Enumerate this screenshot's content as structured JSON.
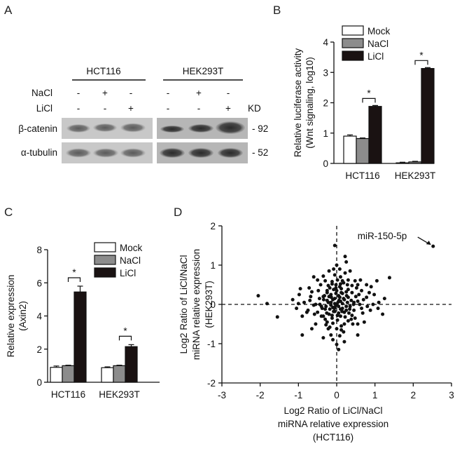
{
  "panels": {
    "A": {
      "letter": "A",
      "cell_lines": [
        "HCT116",
        "HEK293T"
      ],
      "row_labels": {
        "nacl": "NaCl",
        "licl": "LiCl"
      },
      "kd_label": "KD",
      "nacl_signs": [
        "-",
        "+",
        "-",
        "-",
        "+",
        "-"
      ],
      "licl_signs": [
        "-",
        "-",
        "+",
        "-",
        "-",
        "+"
      ],
      "bands": [
        {
          "name": "β-catenin",
          "kd": "- 92"
        },
        {
          "name": "α-tubulin",
          "kd": "- 52"
        }
      ]
    },
    "B": {
      "letter": "B"
    },
    "C": {
      "letter": "C"
    },
    "D": {
      "letter": "D"
    }
  },
  "chart_data": [
    {
      "panel": "B",
      "type": "bar",
      "categories": [
        "HCT116",
        "HEK293T"
      ],
      "series": [
        {
          "name": "Mock",
          "values": [
            0.9,
            0.02
          ],
          "errors": [
            0.04,
            0.02
          ],
          "color": "#ffffff"
        },
        {
          "name": "NaCl",
          "values": [
            0.82,
            0.05
          ],
          "errors": [
            0.02,
            0.02
          ],
          "color": "#8c8c8c"
        },
        {
          "name": "LiCl",
          "values": [
            1.88,
            3.13
          ],
          "errors": [
            0.03,
            0.03
          ],
          "color": "#1a1212"
        }
      ],
      "ylabel": [
        "Relative luciferase activity",
        "(Wnt signaling, log10)"
      ],
      "ylim": [
        0,
        4
      ],
      "yticks": [
        "0",
        "1",
        "2",
        "3",
        "4"
      ],
      "significance": [
        "*",
        "*"
      ]
    },
    {
      "panel": "C",
      "type": "bar",
      "categories": [
        "HCT116",
        "HEK293T"
      ],
      "series": [
        {
          "name": "Mock",
          "values": [
            0.9,
            0.88
          ],
          "errors": [
            0.08,
            0.05
          ],
          "color": "#ffffff"
        },
        {
          "name": "NaCl",
          "values": [
            1.0,
            1.0
          ],
          "errors": [
            0.03,
            0.03
          ],
          "color": "#8c8c8c"
        },
        {
          "name": "LiCl",
          "values": [
            5.45,
            2.15
          ],
          "errors": [
            0.35,
            0.12
          ],
          "color": "#1a1212"
        }
      ],
      "ylabel": [
        "Relative expression",
        "(Axin2)"
      ],
      "ylim": [
        0,
        8
      ],
      "yticks": [
        "0",
        "2",
        "4",
        "6",
        "8"
      ],
      "significance": [
        "*",
        "*"
      ]
    },
    {
      "panel": "D",
      "type": "scatter",
      "xlabel": [
        "Log2 Ratio of LiCl/NaCl",
        "miRNA relative expression",
        "(HCT116)"
      ],
      "ylabel": [
        "Log2 Ratio of LiCl/NaCl",
        "miRNA relative expression",
        "(HEK293T)"
      ],
      "xlim": [
        -3,
        3
      ],
      "ylim": [
        -2,
        2
      ],
      "xticks": [
        "-3",
        "-2",
        "-1",
        "0",
        "1",
        "2",
        "3"
      ],
      "yticks": [
        "-2",
        "-1",
        "0",
        "1",
        "2"
      ],
      "annotation": {
        "text": "miR-150-5p",
        "x": 2.52,
        "y": 1.48
      },
      "points": [
        [
          2.52,
          1.48
        ],
        [
          1.38,
          0.68
        ],
        [
          1.05,
          0.6
        ],
        [
          0.78,
          0.5
        ],
        [
          0.55,
          0.5
        ],
        [
          -0.35,
          0.72
        ],
        [
          -0.6,
          0.7
        ],
        [
          -2.05,
          0.22
        ],
        [
          -1.82,
          0.02
        ],
        [
          -1.55,
          -0.32
        ],
        [
          -0.05,
          1.5
        ],
        [
          0.22,
          1.22
        ],
        [
          0.25,
          1.08
        ],
        [
          0.0,
          1.0
        ],
        [
          0.08,
          0.9
        ],
        [
          -0.22,
          0.48
        ],
        [
          0.4,
          0.48
        ],
        [
          -0.1,
          -0.9
        ],
        [
          0.05,
          -1.15
        ],
        [
          0.0,
          -1.02
        ],
        [
          -0.15,
          -0.78
        ],
        [
          0.12,
          -0.65
        ],
        [
          0.2,
          -0.5
        ],
        [
          -0.55,
          -0.5
        ],
        [
          0.55,
          -0.5
        ],
        [
          -0.25,
          -0.45
        ],
        [
          0.3,
          -0.42
        ],
        [
          -0.12,
          -0.35
        ],
        [
          0.1,
          -0.3
        ],
        [
          -0.35,
          -0.3
        ],
        [
          0.4,
          -0.28
        ],
        [
          -0.2,
          -0.25
        ],
        [
          0.05,
          -0.22
        ],
        [
          -0.05,
          -0.18
        ],
        [
          0.25,
          -0.15
        ],
        [
          -0.3,
          -0.12
        ],
        [
          0.15,
          -0.1
        ],
        [
          -0.1,
          -0.08
        ],
        [
          0.35,
          -0.05
        ],
        [
          -0.4,
          -0.05
        ],
        [
          0.6,
          0.0
        ],
        [
          -0.6,
          -0.02
        ],
        [
          0.45,
          0.05
        ],
        [
          -0.15,
          0.05
        ],
        [
          0.1,
          0.08
        ],
        [
          -0.25,
          0.1
        ],
        [
          0.2,
          0.12
        ],
        [
          -0.05,
          0.15
        ],
        [
          0.3,
          0.18
        ],
        [
          -0.35,
          0.2
        ],
        [
          0.05,
          0.22
        ],
        [
          -0.15,
          0.25
        ],
        [
          0.15,
          0.28
        ],
        [
          -0.25,
          0.3
        ],
        [
          0.25,
          0.32
        ],
        [
          0.0,
          0.35
        ],
        [
          -0.08,
          0.38
        ],
        [
          0.12,
          0.4
        ],
        [
          -0.18,
          0.42
        ],
        [
          0.08,
          0.45
        ],
        [
          -0.02,
          0.5
        ],
        [
          0.18,
          0.55
        ],
        [
          -0.12,
          0.58
        ],
        [
          0.02,
          0.62
        ],
        [
          -0.3,
          0.6
        ],
        [
          0.3,
          0.62
        ],
        [
          0.1,
          0.7
        ],
        [
          -0.05,
          0.75
        ],
        [
          0.22,
          0.8
        ],
        [
          -0.2,
          0.85
        ],
        [
          0.0,
          0.0
        ],
        [
          0.05,
          -0.05
        ],
        [
          -0.05,
          0.02
        ],
        [
          0.1,
          -0.12
        ],
        [
          -0.1,
          0.12
        ],
        [
          0.15,
          0.02
        ],
        [
          -0.15,
          -0.02
        ],
        [
          0.2,
          -0.2
        ],
        [
          -0.2,
          0.2
        ],
        [
          0.08,
          0.18
        ],
        [
          -0.08,
          -0.18
        ],
        [
          0.28,
          0.05
        ],
        [
          -0.28,
          -0.05
        ],
        [
          0.32,
          -0.22
        ],
        [
          -0.32,
          0.22
        ],
        [
          0.4,
          0.3
        ],
        [
          -0.4,
          -0.3
        ],
        [
          0.45,
          -0.15
        ],
        [
          -0.45,
          0.15
        ],
        [
          0.5,
          0.2
        ],
        [
          -0.5,
          -0.2
        ],
        [
          0.02,
          -0.4
        ],
        [
          -0.02,
          0.42
        ],
        [
          0.12,
          -0.55
        ],
        [
          -0.12,
          0.52
        ],
        [
          0.18,
          -0.7
        ],
        [
          -0.22,
          -0.62
        ],
        [
          0.28,
          0.5
        ],
        [
          -0.28,
          -0.52
        ],
        [
          0.38,
          0.1
        ],
        [
          -0.38,
          -0.1
        ],
        [
          0.48,
          -0.35
        ],
        [
          -0.48,
          0.35
        ],
        [
          0.58,
          0.25
        ],
        [
          -0.58,
          -0.25
        ],
        [
          0.65,
          -0.1
        ],
        [
          -0.7,
          0.1
        ],
        [
          0.7,
          0.12
        ],
        [
          -0.75,
          -0.15
        ],
        [
          0.8,
          -0.05
        ],
        [
          -0.85,
          0.05
        ],
        [
          0.85,
          0.3
        ],
        [
          -0.9,
          -0.3
        ],
        [
          0.95,
          0.0
        ],
        [
          -1.0,
          0.02
        ],
        [
          0.62,
          0.62
        ],
        [
          -0.65,
          -0.62
        ],
        [
          0.72,
          -0.45
        ],
        [
          -0.72,
          0.42
        ],
        [
          1.1,
          0.05
        ],
        [
          -1.05,
          -0.1
        ],
        [
          1.2,
          -0.25
        ],
        [
          0.9,
          0.45
        ],
        [
          -0.95,
          0.4
        ],
        [
          0.0,
          -0.62
        ],
        [
          0.08,
          -0.8
        ],
        [
          -0.08,
          0.9
        ],
        [
          0.35,
          0.85
        ],
        [
          -0.35,
          -0.85
        ],
        [
          0.2,
          -0.95
        ],
        [
          -0.9,
          -0.78
        ],
        [
          0.55,
          -0.78
        ],
        [
          0.48,
          0.6
        ],
        [
          -0.5,
          0.62
        ],
        [
          0.15,
          0.6
        ],
        [
          -0.18,
          -0.58
        ],
        [
          0.25,
          -0.05
        ],
        [
          -0.22,
          0.05
        ],
        [
          0.12,
          0.3
        ],
        [
          -0.12,
          -0.28
        ],
        [
          0.06,
          0.1
        ],
        [
          -0.06,
          -0.1
        ],
        [
          0.18,
          0.15
        ],
        [
          -0.18,
          -0.12
        ],
        [
          0.3,
          0.38
        ],
        [
          -0.3,
          -0.38
        ],
        [
          0.42,
          -0.5
        ],
        [
          -0.42,
          0.5
        ],
        [
          0.52,
          0.42
        ],
        [
          -0.55,
          0.0
        ],
        [
          0.55,
          0.08
        ],
        [
          0.65,
          0.35
        ],
        [
          -0.65,
          0.32
        ],
        [
          0.1,
          0.52
        ],
        [
          -0.1,
          -0.48
        ],
        [
          0.22,
          -0.32
        ],
        [
          -0.25,
          0.35
        ],
        [
          0.38,
          -0.38
        ],
        [
          -0.02,
          0.28
        ],
        [
          0.02,
          -0.28
        ],
        [
          0.14,
          -0.18
        ],
        [
          -0.14,
          0.18
        ],
        [
          0.26,
          0.22
        ],
        [
          -0.26,
          -0.22
        ],
        [
          0.34,
          -0.12
        ],
        [
          -0.34,
          0.12
        ],
        [
          0.44,
          0.0
        ],
        [
          -0.44,
          0.0
        ],
        [
          0.04,
          0.06
        ],
        [
          -0.04,
          -0.06
        ],
        [
          0.68,
          -0.22
        ],
        [
          -0.68,
          0.2
        ],
        [
          0.78,
          0.18
        ],
        [
          -0.78,
          -0.2
        ],
        [
          0.88,
          -0.15
        ],
        [
          0.98,
          0.25
        ],
        [
          -0.98,
          0.25
        ],
        [
          1.08,
          -0.1
        ],
        [
          -1.15,
          0.12
        ],
        [
          1.25,
          0.15
        ]
      ]
    }
  ]
}
